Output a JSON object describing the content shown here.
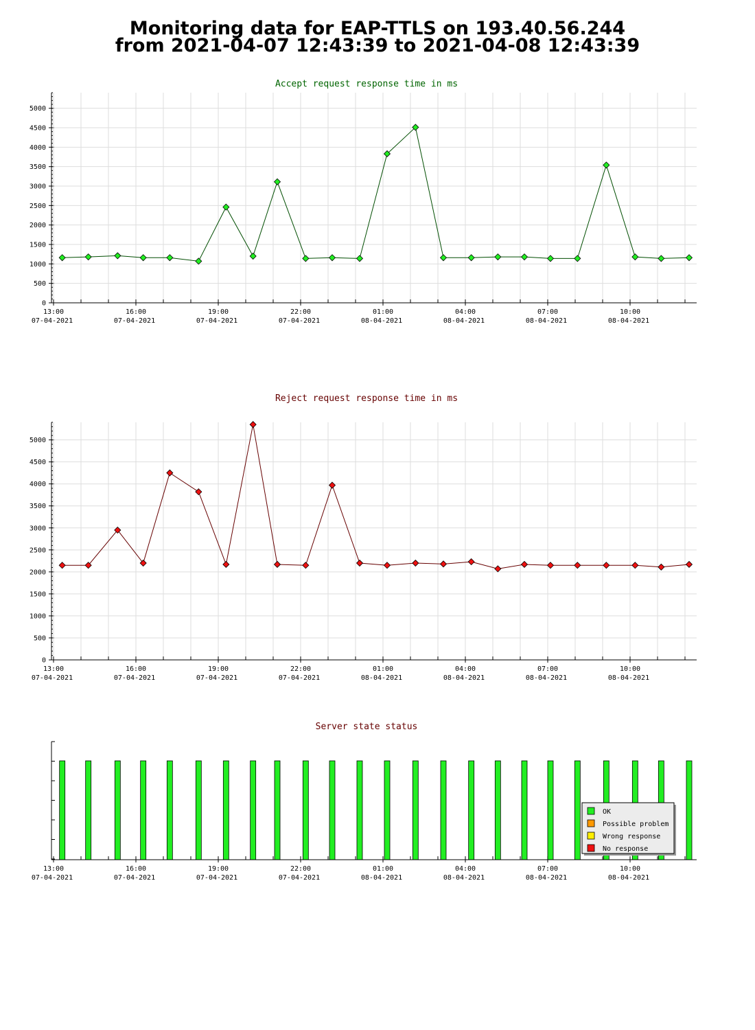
{
  "header": {
    "title_line1": "Monitoring data for EAP-TTLS on 193.40.56.244",
    "title_line2": "from 2021-04-07 12:43:39 to 2021-04-08 12:43:39"
  },
  "time_axis": {
    "ticks": [
      {
        "time": "13:00",
        "date": "07-04-2021"
      },
      {
        "time": "16:00",
        "date": "07-04-2021"
      },
      {
        "time": "19:00",
        "date": "07-04-2021"
      },
      {
        "time": "22:00",
        "date": "07-04-2021"
      },
      {
        "time": "01:00",
        "date": "08-04-2021"
      },
      {
        "time": "04:00",
        "date": "08-04-2021"
      },
      {
        "time": "07:00",
        "date": "08-04-2021"
      },
      {
        "time": "10:00",
        "date": "08-04-2021"
      }
    ]
  },
  "chart_data": [
    {
      "type": "line",
      "title": "Accept request response time in ms",
      "title_color": "#006400",
      "line_color": "#004d00",
      "marker_color": "#22ee22",
      "ylim": [
        0,
        5400
      ],
      "yticks": [
        0,
        500,
        1000,
        1500,
        2000,
        2500,
        3000,
        3500,
        4000,
        4500,
        5000
      ],
      "x": [
        "2021-04-07 13:19",
        "2021-04-07 14:16",
        "2021-04-07 15:20",
        "2021-04-07 16:16",
        "2021-04-07 17:14",
        "2021-04-07 18:17",
        "2021-04-07 19:17",
        "2021-04-07 20:16",
        "2021-04-07 21:09",
        "2021-04-07 22:11",
        "2021-04-07 23:09",
        "2021-04-08 00:09",
        "2021-04-08 01:09",
        "2021-04-08 02:11",
        "2021-04-08 03:12",
        "2021-04-08 04:13",
        "2021-04-08 05:11",
        "2021-04-08 06:09",
        "2021-04-08 07:06",
        "2021-04-08 08:05",
        "2021-04-08 09:08",
        "2021-04-08 10:11",
        "2021-04-08 11:08",
        "2021-04-08 12:09"
      ],
      "values": [
        1160,
        1180,
        1210,
        1160,
        1160,
        1070,
        2460,
        1200,
        3110,
        1140,
        1160,
        1140,
        3830,
        4510,
        1160,
        1160,
        1180,
        1180,
        1140,
        1140,
        3540,
        1180,
        1140,
        1160
      ]
    },
    {
      "type": "line",
      "title": "Reject request response time in ms",
      "title_color": "#660000",
      "line_color": "#660000",
      "marker_color": "#ee1111",
      "ylim": [
        0,
        5400
      ],
      "yticks": [
        0,
        500,
        1000,
        1500,
        2000,
        2500,
        3000,
        3500,
        4000,
        4500,
        5000
      ],
      "x": [
        "2021-04-07 13:19",
        "2021-04-07 14:16",
        "2021-04-07 15:20",
        "2021-04-07 16:16",
        "2021-04-07 17:14",
        "2021-04-07 18:17",
        "2021-04-07 19:17",
        "2021-04-07 20:16",
        "2021-04-07 21:09",
        "2021-04-07 22:11",
        "2021-04-07 23:09",
        "2021-04-08 00:09",
        "2021-04-08 01:09",
        "2021-04-08 02:11",
        "2021-04-08 03:12",
        "2021-04-08 04:13",
        "2021-04-08 05:11",
        "2021-04-08 06:09",
        "2021-04-08 07:06",
        "2021-04-08 08:05",
        "2021-04-08 09:08",
        "2021-04-08 10:11",
        "2021-04-08 11:08",
        "2021-04-08 12:09"
      ],
      "values": [
        2150,
        2150,
        2950,
        2200,
        4250,
        3820,
        2170,
        5350,
        2170,
        2150,
        3970,
        2200,
        2150,
        2200,
        2180,
        2230,
        2070,
        2170,
        2150,
        2150,
        2150,
        2150,
        2110,
        2170
      ]
    },
    {
      "type": "bar",
      "title": "Server state status",
      "title_color": "#660000",
      "x": [
        "2021-04-07 13:19",
        "2021-04-07 14:16",
        "2021-04-07 15:20",
        "2021-04-07 16:16",
        "2021-04-07 17:14",
        "2021-04-07 18:17",
        "2021-04-07 19:17",
        "2021-04-07 20:16",
        "2021-04-07 21:09",
        "2021-04-07 22:11",
        "2021-04-07 23:09",
        "2021-04-08 00:09",
        "2021-04-08 01:09",
        "2021-04-08 02:11",
        "2021-04-08 03:12",
        "2021-04-08 04:13",
        "2021-04-08 05:11",
        "2021-04-08 06:09",
        "2021-04-08 07:06",
        "2021-04-08 08:05",
        "2021-04-08 09:08",
        "2021-04-08 10:11",
        "2021-04-08 11:08",
        "2021-04-08 12:09"
      ],
      "states": [
        "OK",
        "OK",
        "OK",
        "OK",
        "OK",
        "OK",
        "OK",
        "OK",
        "OK",
        "OK",
        "OK",
        "OK",
        "OK",
        "OK",
        "OK",
        "OK",
        "OK",
        "OK",
        "OK",
        "OK",
        "OK",
        "OK",
        "OK",
        "OK"
      ],
      "legend": [
        {
          "label": "OK",
          "color": "#22ee22"
        },
        {
          "label": "Possible problem",
          "color": "#ff9900"
        },
        {
          "label": "Wrong response",
          "color": "#ffee00"
        },
        {
          "label": "No response",
          "color": "#ee1111"
        }
      ],
      "legend_position": "bottom-right"
    }
  ]
}
